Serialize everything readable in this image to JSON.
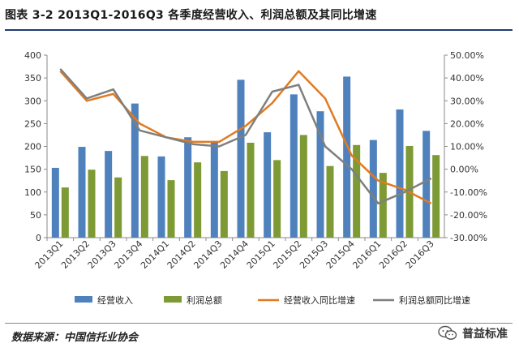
{
  "title": "图表 3-2 2013Q1-2016Q3 各季度经营收入、利润总额及其同比增速",
  "source": "数据来源：中国信托业协会",
  "watermark": "普益标准",
  "colors": {
    "revenue": "#4f81bd",
    "profit": "#7d9a35",
    "revenue_growth": "#e07b22",
    "profit_growth": "#7f7f7f"
  },
  "chart_data": {
    "type": "bar",
    "categories": [
      "2013Q1",
      "2013Q2",
      "2013Q3",
      "2013Q4",
      "2014Q1",
      "2014Q2",
      "2014Q3",
      "2014Q4",
      "2015Q1",
      "2015Q2",
      "2015Q3",
      "2015Q4",
      "2016Q1",
      "2016Q2",
      "2016Q3"
    ],
    "series": [
      {
        "name": "经营收入",
        "type": "bar",
        "axis": "left",
        "color": "#4f81bd",
        "values": [
          153,
          199,
          190,
          294,
          178,
          220,
          210,
          346,
          231,
          314,
          277,
          353,
          214,
          281,
          234
        ]
      },
      {
        "name": "利润总额",
        "type": "bar",
        "axis": "left",
        "color": "#7d9a35",
        "values": [
          110,
          149,
          132,
          179,
          126,
          165,
          146,
          208,
          170,
          225,
          157,
          203,
          142,
          201,
          181
        ]
      },
      {
        "name": "经营收入同比增速",
        "type": "line",
        "axis": "right",
        "color": "#e07b22",
        "values": [
          43,
          30,
          33,
          20,
          14,
          12,
          12,
          19,
          29,
          43,
          31,
          6,
          -5,
          -9,
          -15
        ]
      },
      {
        "name": "利润总额同比增速",
        "type": "line",
        "axis": "right",
        "color": "#7f7f7f",
        "values": [
          44,
          31,
          35,
          17,
          14,
          11,
          10,
          15,
          34,
          37,
          10,
          0,
          -15,
          -10,
          -4
        ]
      }
    ],
    "y_left": {
      "min": 0,
      "max": 400,
      "ticks": [
        "0",
        "50",
        "100",
        "150",
        "200",
        "250",
        "300",
        "350",
        "400"
      ]
    },
    "y_right": {
      "min": -30,
      "max": 50,
      "ticks": [
        "-30.00%",
        "-20.00%",
        "-10.00%",
        "0.00%",
        "10.00%",
        "20.00%",
        "30.00%",
        "40.00%",
        "50.00%"
      ]
    },
    "grid": false,
    "legend_position": "bottom"
  }
}
